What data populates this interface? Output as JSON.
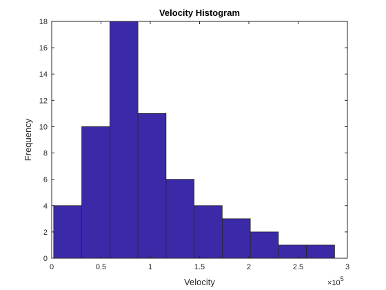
{
  "chart_data": {
    "type": "bar",
    "title": "Velocity Histogram",
    "xlabel": "Velocity",
    "ylabel": "Frequency",
    "x_exponent_base": "10",
    "x_exponent_power": "5",
    "xlim": [
      0,
      3
    ],
    "ylim": [
      0,
      18
    ],
    "xticks": [
      "0",
      "0.5",
      "1",
      "1.5",
      "2",
      "2.5",
      "3"
    ],
    "yticks": [
      "0",
      "2",
      "4",
      "6",
      "8",
      "10",
      "12",
      "14",
      "16",
      "18"
    ],
    "bin_edges": [
      0.02,
      0.305,
      0.59,
      0.875,
      1.16,
      1.445,
      1.73,
      2.015,
      2.3,
      2.585,
      2.87
    ],
    "values": [
      4,
      10,
      18,
      11,
      6,
      4,
      3,
      2,
      1,
      1
    ],
    "bar_color": "#3a2aa8",
    "bar_edge_color": "#262626",
    "grid": false
  }
}
